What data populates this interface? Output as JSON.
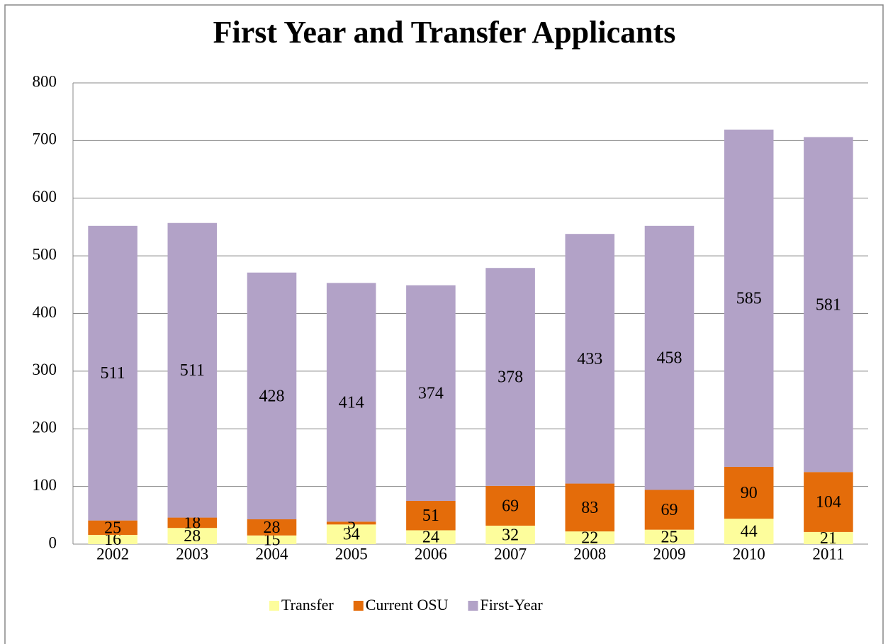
{
  "chart_data": {
    "type": "stacked_bar",
    "title": "First Year and Transfer Applicants",
    "categories": [
      "2002",
      "2003",
      "2004",
      "2005",
      "2006",
      "2007",
      "2008",
      "2009",
      "2010",
      "2011"
    ],
    "series": [
      {
        "name": "Transfer",
        "color": "#fdfd9c",
        "values": [
          16,
          28,
          15,
          34,
          24,
          32,
          22,
          25,
          44,
          21
        ]
      },
      {
        "name": "Current OSU",
        "color": "#e46c0a",
        "values": [
          25,
          18,
          28,
          5,
          51,
          69,
          83,
          69,
          90,
          104
        ]
      },
      {
        "name": "First-Year",
        "color": "#b2a2c7",
        "values": [
          511,
          511,
          428,
          414,
          374,
          378,
          433,
          458,
          585,
          581
        ]
      }
    ],
    "ylim": [
      0,
      800
    ],
    "yticks": [
      0,
      100,
      200,
      300,
      400,
      500,
      600,
      700,
      800
    ],
    "grid": true,
    "legend": "bottom"
  }
}
